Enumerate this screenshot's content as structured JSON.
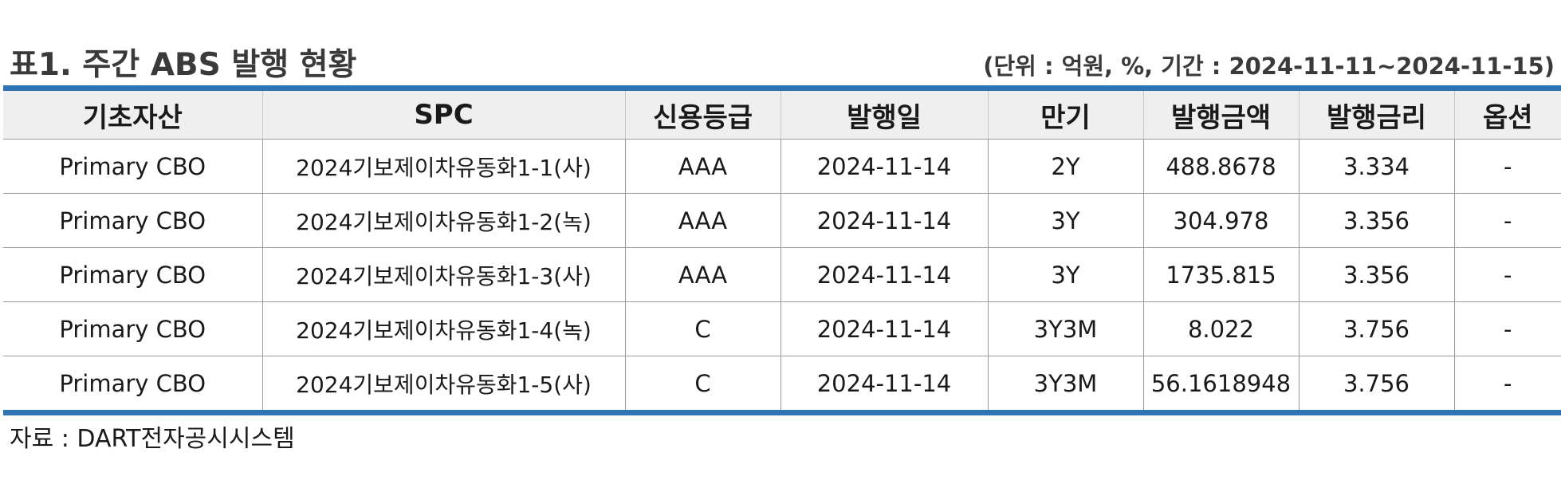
{
  "header": {
    "title": "표1. 주간 ABS 발행 현황",
    "unit_period": "(단위 : 억원, %, 기간 : 2024-11-11~2024-11-15)"
  },
  "table": {
    "columns": [
      "기초자산",
      "SPC",
      "신용등급",
      "발행일",
      "만기",
      "발행금액",
      "발행금리",
      "옵션"
    ],
    "rows": [
      [
        "Primary CBO",
        "2024기보제이차유동화1-1(사)",
        "AAA",
        "2024-11-14",
        "2Y",
        "488.8678",
        "3.334",
        "-"
      ],
      [
        "Primary CBO",
        "2024기보제이차유동화1-2(녹)",
        "AAA",
        "2024-11-14",
        "3Y",
        "304.978",
        "3.356",
        "-"
      ],
      [
        "Primary CBO",
        "2024기보제이차유동화1-3(사)",
        "AAA",
        "2024-11-14",
        "3Y",
        "1735.815",
        "3.356",
        "-"
      ],
      [
        "Primary CBO",
        "2024기보제이차유동화1-4(녹)",
        "C",
        "2024-11-14",
        "3Y3M",
        "8.022",
        "3.756",
        "-"
      ],
      [
        "Primary CBO",
        "2024기보제이차유동화1-5(사)",
        "C",
        "2024-11-14",
        "3Y3M",
        "56.1618948",
        "3.756",
        "-"
      ]
    ]
  },
  "footer": {
    "source": "자료 : DART전자공시시스템"
  },
  "colors": {
    "accent_border": "#2e74b5",
    "header_bg": "#efefef",
    "title_text": "#3a3a3a"
  }
}
